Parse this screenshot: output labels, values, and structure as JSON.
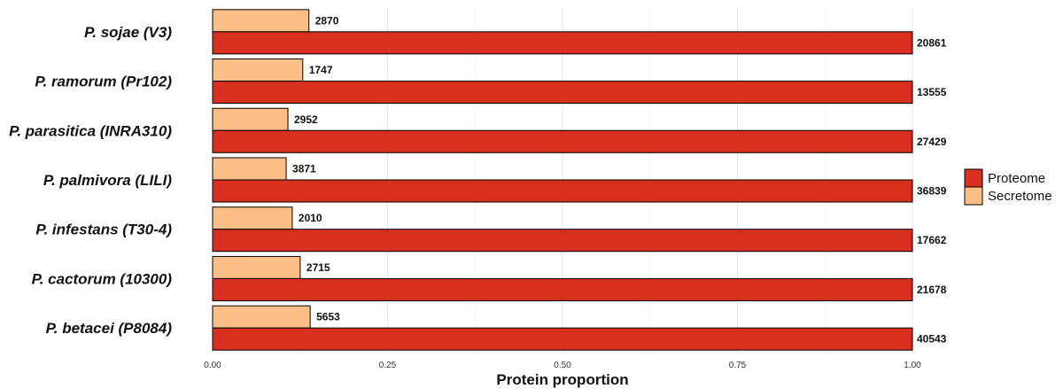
{
  "chart_data": {
    "type": "bar",
    "orientation": "horizontal",
    "categories": [
      "P. sojae (V3)",
      "P. ramorum (Pr102)",
      "P. parasitica (INRA310)",
      "P. palmivora (LILI)",
      "P. infestans (T30-4)",
      "P. cactorum (10300)",
      "P. betacei (P8084)"
    ],
    "series": [
      {
        "name": "Secretome",
        "color": "#FDBF85",
        "counts": [
          2870,
          1747,
          2952,
          3871,
          2010,
          2715,
          5653
        ],
        "values": [
          0.1376,
          0.1289,
          0.1076,
          0.1051,
          0.1138,
          0.1252,
          0.1394
        ]
      },
      {
        "name": "Proteome",
        "color": "#D7301F",
        "counts": [
          20861,
          13555,
          27429,
          36839,
          17662,
          21678,
          40543
        ],
        "values": [
          1,
          1,
          1,
          1,
          1,
          1,
          1
        ]
      }
    ],
    "xlabel": "Protein proportion",
    "xlim": [
      0,
      1
    ],
    "xticks": [
      "0.00",
      "0.25",
      "0.50",
      "0.75",
      "1.00"
    ],
    "grid": true,
    "legend": {
      "placement": "right",
      "entries": [
        "Proteome",
        "Secretome"
      ]
    }
  }
}
